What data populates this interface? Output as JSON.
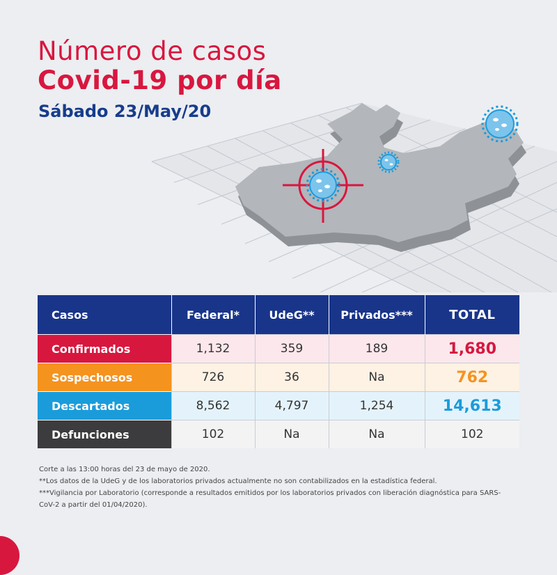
{
  "header": {
    "title_line1": "Número de casos",
    "title_line2": "Covid-19 por día",
    "date": "Sábado 23/May/20"
  },
  "colors": {
    "title_red": "#d8173f",
    "date_blue": "#173c8c",
    "header_blue": "#19358a",
    "confirmados": "#d8173f",
    "sospechosos": "#f5931f",
    "descartados": "#1a9cdb",
    "defunciones": "#3c3c3e"
  },
  "illustration": {
    "icons": [
      "state-map",
      "crosshair-target-icon",
      "virus-icon"
    ]
  },
  "table": {
    "headers": [
      "Casos",
      "Federal*",
      "UdeG**",
      "Privados***",
      "TOTAL"
    ],
    "rows": [
      {
        "label": "Confirmados",
        "federal": "1,132",
        "udeg": "359",
        "privados": "189",
        "total": "1,680"
      },
      {
        "label": "Sospechosos",
        "federal": "726",
        "udeg": "36",
        "privados": "Na",
        "total": "762"
      },
      {
        "label": "Descartados",
        "federal": "8,562",
        "udeg": "4,797",
        "privados": "1,254",
        "total": "14,613"
      },
      {
        "label": "Defunciones",
        "federal": "102",
        "udeg": "Na",
        "privados": "Na",
        "total": "102"
      }
    ]
  },
  "notes": [
    "Corte a las 13:00 horas del 23 de mayo de 2020.",
    "**Los datos de la UdeG y de los laboratorios privados actualmente no son contabilizados en la estadística federal.",
    "***Vigilancia por Laboratorio (corresponde a resultados emitidos por los laboratorios privados con liberación diagnóstica para SARS-CoV-2 a partir del 01/04/2020)."
  ]
}
